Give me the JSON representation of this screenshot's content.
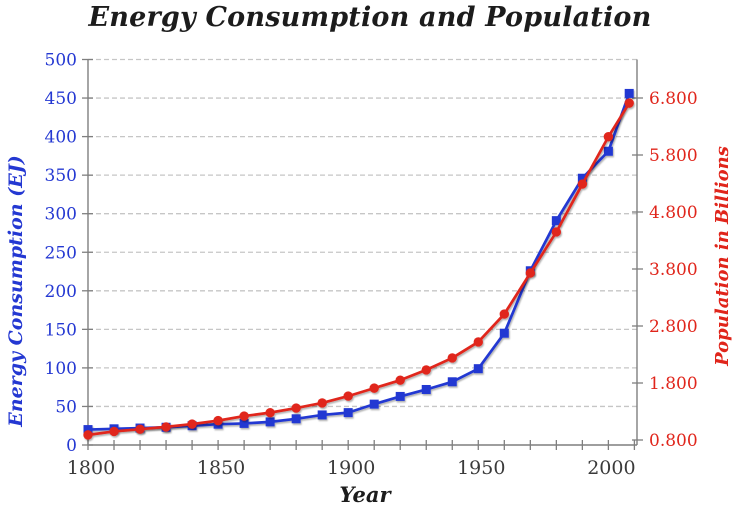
{
  "title": "Energy Consumption and Population",
  "chart_data": {
    "type": "line",
    "title": "Energy Consumption and Population",
    "xlabel": "Year",
    "ylabel_left": "Energy Consumption (EJ)",
    "ylabel_right": "Population in Billions",
    "grid": {
      "horizontal": true,
      "style": "dashed"
    },
    "legend": "none",
    "x_axis": {
      "label": "Year",
      "range": [
        1800,
        2011
      ],
      "tick_years": [
        1800,
        1810,
        1820,
        1830,
        1840,
        1850,
        1860,
        1870,
        1880,
        1890,
        1900,
        1910,
        1920,
        1930,
        1940,
        1950,
        1960,
        1970,
        1980,
        1990,
        2000,
        2010
      ],
      "label_years": [
        1800,
        1850,
        1900,
        1950,
        2000
      ]
    },
    "left_axis": {
      "label": "Energy Consumption (EJ)",
      "min": 0,
      "max": 500,
      "ticks": [
        0,
        50,
        100,
        150,
        200,
        250,
        300,
        350,
        400,
        450,
        500
      ],
      "color": "#2438D2"
    },
    "right_axis": {
      "label": "Population in Billions",
      "min": 0.8,
      "max": 6.8,
      "ticks": [
        0.8,
        1.8,
        2.8,
        3.8,
        4.8,
        5.8,
        6.8
      ],
      "tick_labels": [
        "0.800",
        "1.800",
        "2.800",
        "3.800",
        "4.800",
        "5.800",
        "6.800"
      ],
      "color": "#E0251B"
    },
    "x": [
      1800,
      1810,
      1820,
      1830,
      1840,
      1850,
      1860,
      1870,
      1880,
      1890,
      1900,
      1910,
      1920,
      1930,
      1940,
      1950,
      1960,
      1970,
      1980,
      1990,
      2000,
      2008
    ],
    "series": [
      {
        "name": "Energy Consumption (EJ)",
        "axis": "left",
        "color": "#2438D2",
        "marker": "square",
        "values": [
          20,
          21,
          22,
          23,
          25,
          27,
          28,
          30,
          34,
          39,
          42,
          53,
          63,
          72,
          82,
          99,
          145,
          226,
          291,
          346,
          381,
          456
        ]
      },
      {
        "name": "Population in Billions",
        "axis": "right",
        "color": "#E0251B",
        "marker": "circle",
        "values": [
          0.89,
          0.95,
          0.99,
          1.03,
          1.08,
          1.14,
          1.22,
          1.28,
          1.36,
          1.45,
          1.57,
          1.71,
          1.85,
          2.03,
          2.24,
          2.52,
          3.01,
          3.73,
          4.45,
          5.29,
          6.12,
          6.71
        ]
      }
    ],
    "colors": {
      "grid": "#c6c6c6",
      "axis": "#7f7f7f",
      "title": "#1c1c1c",
      "x_tick_labels": "#3a3a3a"
    }
  }
}
